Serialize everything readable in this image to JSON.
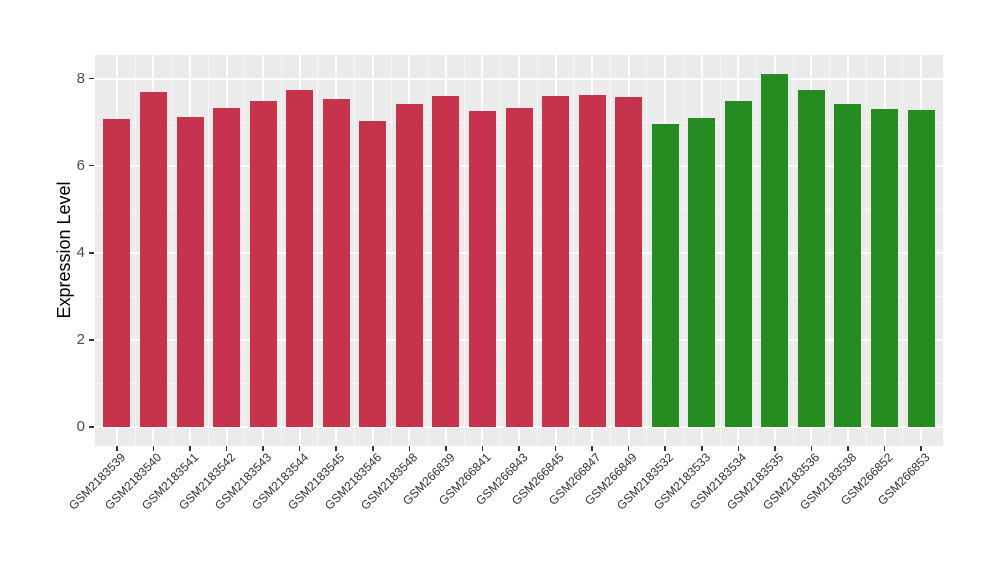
{
  "chart_data": {
    "type": "bar",
    "title": "",
    "xlabel": "",
    "ylabel": "Expression Level",
    "ylim": [
      0,
      8.56
    ],
    "yticks": [
      0,
      2,
      4,
      6,
      8
    ],
    "yminorticks": [
      1,
      3,
      5,
      7
    ],
    "grid": "on",
    "legend": "none",
    "panel_bg": "#EBEBEB",
    "grid_major_color": "#FFFFFF",
    "grid_minor_color": "rgba(255,255,255,0.55)",
    "tick_color": "#333333",
    "axis_text_color": "#4d4d4d",
    "group_colors": {
      "group1": "#C5334D",
      "group2": "#258C22"
    },
    "bars": [
      {
        "label": "GSM2183539",
        "value": 7.08,
        "group": "group1"
      },
      {
        "label": "GSM2183540",
        "value": 7.69,
        "group": "group1"
      },
      {
        "label": "GSM2183541",
        "value": 7.12,
        "group": "group1"
      },
      {
        "label": "GSM2183542",
        "value": 7.32,
        "group": "group1"
      },
      {
        "label": "GSM2183543",
        "value": 7.49,
        "group": "group1"
      },
      {
        "label": "GSM2183544",
        "value": 7.74,
        "group": "group1"
      },
      {
        "label": "GSM2183545",
        "value": 7.53,
        "group": "group1"
      },
      {
        "label": "GSM2183546",
        "value": 7.03,
        "group": "group1"
      },
      {
        "label": "GSM2183548",
        "value": 7.41,
        "group": "group1"
      },
      {
        "label": "GSM266839",
        "value": 7.61,
        "group": "group1"
      },
      {
        "label": "GSM266841",
        "value": 7.26,
        "group": "group1"
      },
      {
        "label": "GSM266843",
        "value": 7.33,
        "group": "group1"
      },
      {
        "label": "GSM266845",
        "value": 7.59,
        "group": "group1"
      },
      {
        "label": "GSM266847",
        "value": 7.62,
        "group": "group1"
      },
      {
        "label": "GSM266849",
        "value": 7.58,
        "group": "group1"
      },
      {
        "label": "GSM2183532",
        "value": 6.95,
        "group": "group2"
      },
      {
        "label": "GSM2183533",
        "value": 7.09,
        "group": "group2"
      },
      {
        "label": "GSM2183534",
        "value": 7.48,
        "group": "group2"
      },
      {
        "label": "GSM2183535",
        "value": 8.11,
        "group": "group2"
      },
      {
        "label": "GSM2183536",
        "value": 7.74,
        "group": "group2"
      },
      {
        "label": "GSM2183538",
        "value": 7.41,
        "group": "group2"
      },
      {
        "label": "GSM266852",
        "value": 7.31,
        "group": "group2"
      },
      {
        "label": "GSM266853",
        "value": 7.28,
        "group": "group2"
      }
    ]
  }
}
